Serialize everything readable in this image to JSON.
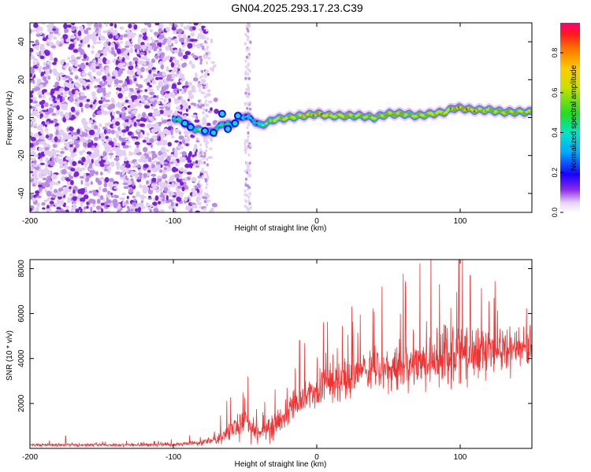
{
  "title": "GN04.2025.293.17.23.C39",
  "chart_data": [
    {
      "type": "heatmap",
      "xlabel": "Height of straight line (km)",
      "ylabel": "Frequency (Hz)",
      "xlim": [
        -200,
        150
      ],
      "ylim": [
        -50,
        50
      ],
      "xticks": [
        -200,
        -100,
        0,
        100
      ],
      "yticks": [
        -40,
        -20,
        0,
        20,
        40
      ],
      "colorbar": {
        "label": "Normalized spectral amplitude",
        "range": [
          0,
          0.95
        ],
        "ticks": [
          0.0,
          0.2,
          0.4,
          0.6,
          0.8
        ]
      },
      "noise_region": {
        "x_from": -200,
        "x_to": -75
      },
      "ridge": {
        "x": [
          -100,
          -92,
          -85,
          -80,
          -75,
          -70,
          -65,
          -60,
          -55,
          -50,
          -45,
          -40,
          -35,
          -30,
          -20,
          -10,
          0,
          10,
          20,
          30,
          40,
          50,
          60,
          70,
          80,
          90,
          95,
          100,
          110,
          120,
          130,
          140,
          150
        ],
        "hz": [
          0,
          -3,
          -6,
          -7,
          -8,
          -6,
          -3,
          -4,
          -1,
          1,
          -1,
          -4,
          -3,
          -1,
          0,
          1,
          2,
          1,
          1,
          1,
          0,
          2,
          2,
          1,
          2,
          3,
          5,
          5,
          4,
          4,
          3,
          3,
          3
        ],
        "amp": [
          0.45,
          0.5,
          0.55,
          0.6,
          0.55,
          0.5,
          0.5,
          0.45,
          0.45,
          0.4,
          0.4,
          0.5,
          0.6,
          0.75,
          0.8,
          0.85,
          0.9,
          0.85,
          0.85,
          0.8,
          0.8,
          0.85,
          0.85,
          0.8,
          0.85,
          0.85,
          0.9,
          0.95,
          0.9,
          0.85,
          0.85,
          0.8,
          0.8
        ]
      }
    },
    {
      "type": "line",
      "xlabel": "Height of straight line (km)",
      "ylabel": "SNR (10 * v/v)",
      "xlim": [
        -200,
        150
      ],
      "ylim": [
        0,
        8400
      ],
      "xticks": [
        -200,
        -100,
        0,
        100
      ],
      "yticks": [
        2000,
        4000,
        6000,
        8000
      ],
      "series": [
        {
          "name": "SNR",
          "color": "#ee3333",
          "x": [
            -200,
            -180,
            -160,
            -140,
            -120,
            -100,
            -90,
            -80,
            -70,
            -60,
            -50,
            -45,
            -40,
            -30,
            -20,
            -10,
            0,
            10,
            20,
            30,
            40,
            50,
            60,
            70,
            80,
            90,
            100,
            110,
            120,
            130,
            140,
            150
          ],
          "mean": [
            150,
            150,
            150,
            150,
            150,
            170,
            200,
            250,
            400,
            800,
            1200,
            900,
            600,
            900,
            1600,
            2300,
            2600,
            2900,
            3100,
            3300,
            3500,
            3600,
            3700,
            3800,
            3900,
            4000,
            4100,
            4200,
            4300,
            4400,
            4400,
            4500
          ],
          "spread": [
            80,
            80,
            80,
            80,
            80,
            100,
            120,
            150,
            300,
            700,
            1100,
            800,
            500,
            700,
            900,
            1000,
            1100,
            1200,
            1300,
            1300,
            1400,
            1400,
            1400,
            1500,
            1500,
            1600,
            1700,
            1500,
            1400,
            1300,
            1200,
            1200
          ],
          "peaks": [
            [
              -175,
              550
            ],
            [
              -48,
              3200
            ],
            [
              40,
              6100
            ],
            [
              62,
              6700
            ],
            [
              99,
              8400
            ],
            [
              107,
              7700
            ],
            [
              -12,
              4800
            ]
          ]
        }
      ]
    }
  ]
}
